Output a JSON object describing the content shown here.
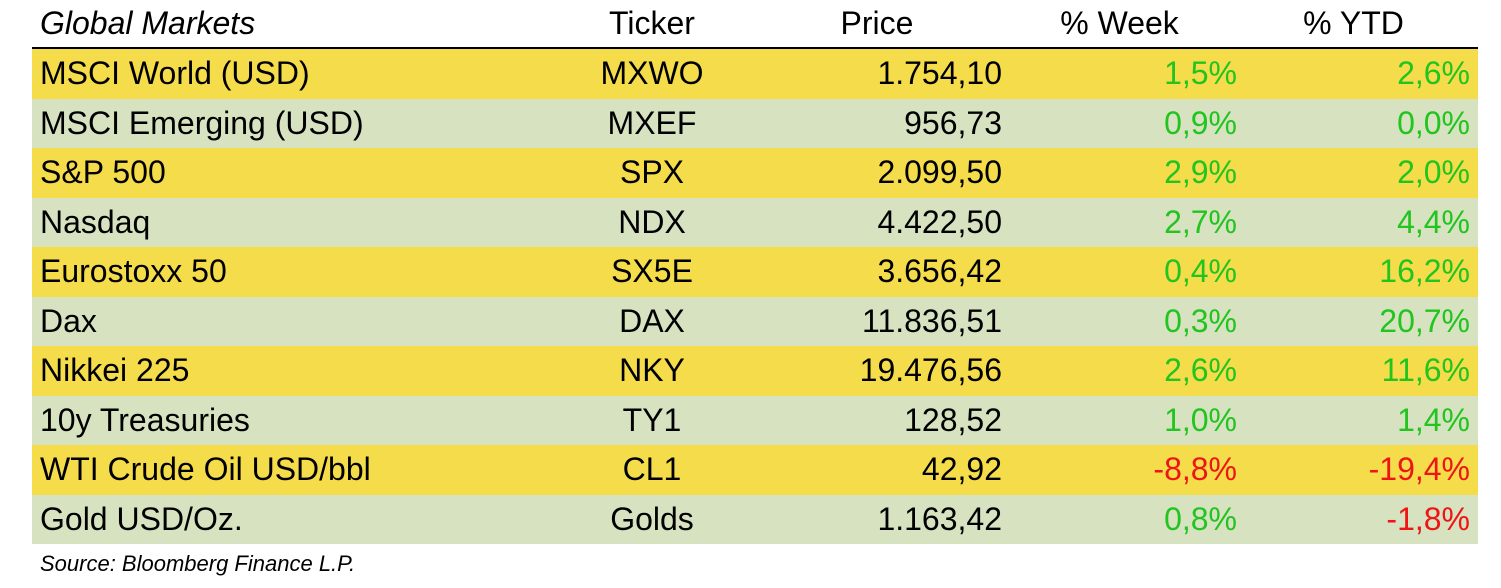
{
  "table": {
    "headers": {
      "name": "Global Markets",
      "ticker": "Ticker",
      "price": "Price",
      "week": "% Week",
      "ytd": "% YTD"
    },
    "rows": [
      {
        "name": "MSCI World (USD)",
        "ticker": "MXWO",
        "price": "1.754,10",
        "week": "1,5%",
        "ytd": "2,6%"
      },
      {
        "name": "MSCI Emerging (USD)",
        "ticker": "MXEF",
        "price": "956,73",
        "week": "0,9%",
        "ytd": "0,0%"
      },
      {
        "name": "S&P 500",
        "ticker": "SPX",
        "price": "2.099,50",
        "week": "2,9%",
        "ytd": "2,0%"
      },
      {
        "name": "Nasdaq",
        "ticker": "NDX",
        "price": "4.422,50",
        "week": "2,7%",
        "ytd": "4,4%"
      },
      {
        "name": "Eurostoxx 50",
        "ticker": "SX5E",
        "price": "3.656,42",
        "week": "0,4%",
        "ytd": "16,2%"
      },
      {
        "name": "Dax",
        "ticker": "DAX",
        "price": "11.836,51",
        "week": "0,3%",
        "ytd": "20,7%"
      },
      {
        "name": "Nikkei 225",
        "ticker": "NKY",
        "price": "19.476,56",
        "week": "2,6%",
        "ytd": "11,6%"
      },
      {
        "name": "10y Treasuries",
        "ticker": "TY1",
        "price": "128,52",
        "week": "1,0%",
        "ytd": "1,4%"
      },
      {
        "name": "WTI Crude Oil USD/bbl",
        "ticker": "CL1",
        "price": "42,92",
        "week": "-8,8%",
        "ytd": "-19,4%"
      },
      {
        "name": "Gold USD/Oz.",
        "ticker": "Golds",
        "price": "1.163,42",
        "week": "0,8%",
        "ytd": "-1,8%"
      }
    ]
  },
  "source": "Source: Bloomberg Finance L.P.",
  "colors": {
    "row_odd": "#f5dc4a",
    "row_even": "#d6e2c0",
    "positive": "#22c41f",
    "negative": "#ee1515"
  }
}
